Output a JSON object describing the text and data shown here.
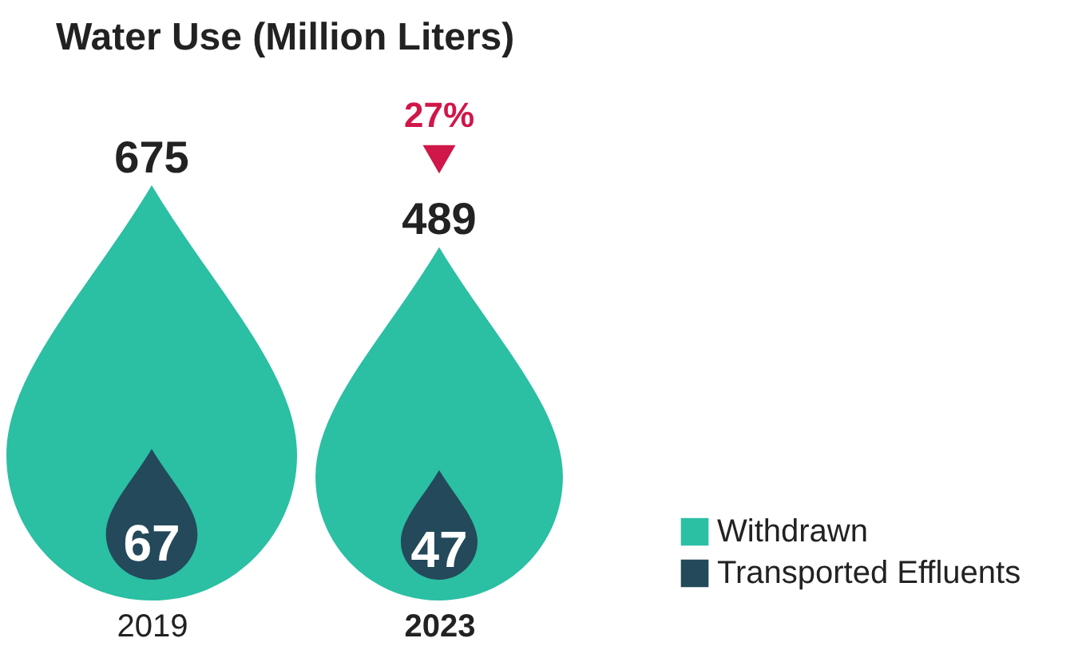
{
  "chart_data": {
    "type": "other",
    "title": "Water Use (Million Liters)",
    "categories": [
      "2019",
      "2023"
    ],
    "series": [
      {
        "name": "Withdrawn",
        "color": "#2bbfa4",
        "values": [
          675,
          489
        ]
      },
      {
        "name": "Transported Effluents",
        "color": "#23495a",
        "values": [
          67,
          47
        ]
      }
    ],
    "data_labels": true,
    "annotations": [
      "27%"
    ],
    "legend": "bottom right"
  }
}
